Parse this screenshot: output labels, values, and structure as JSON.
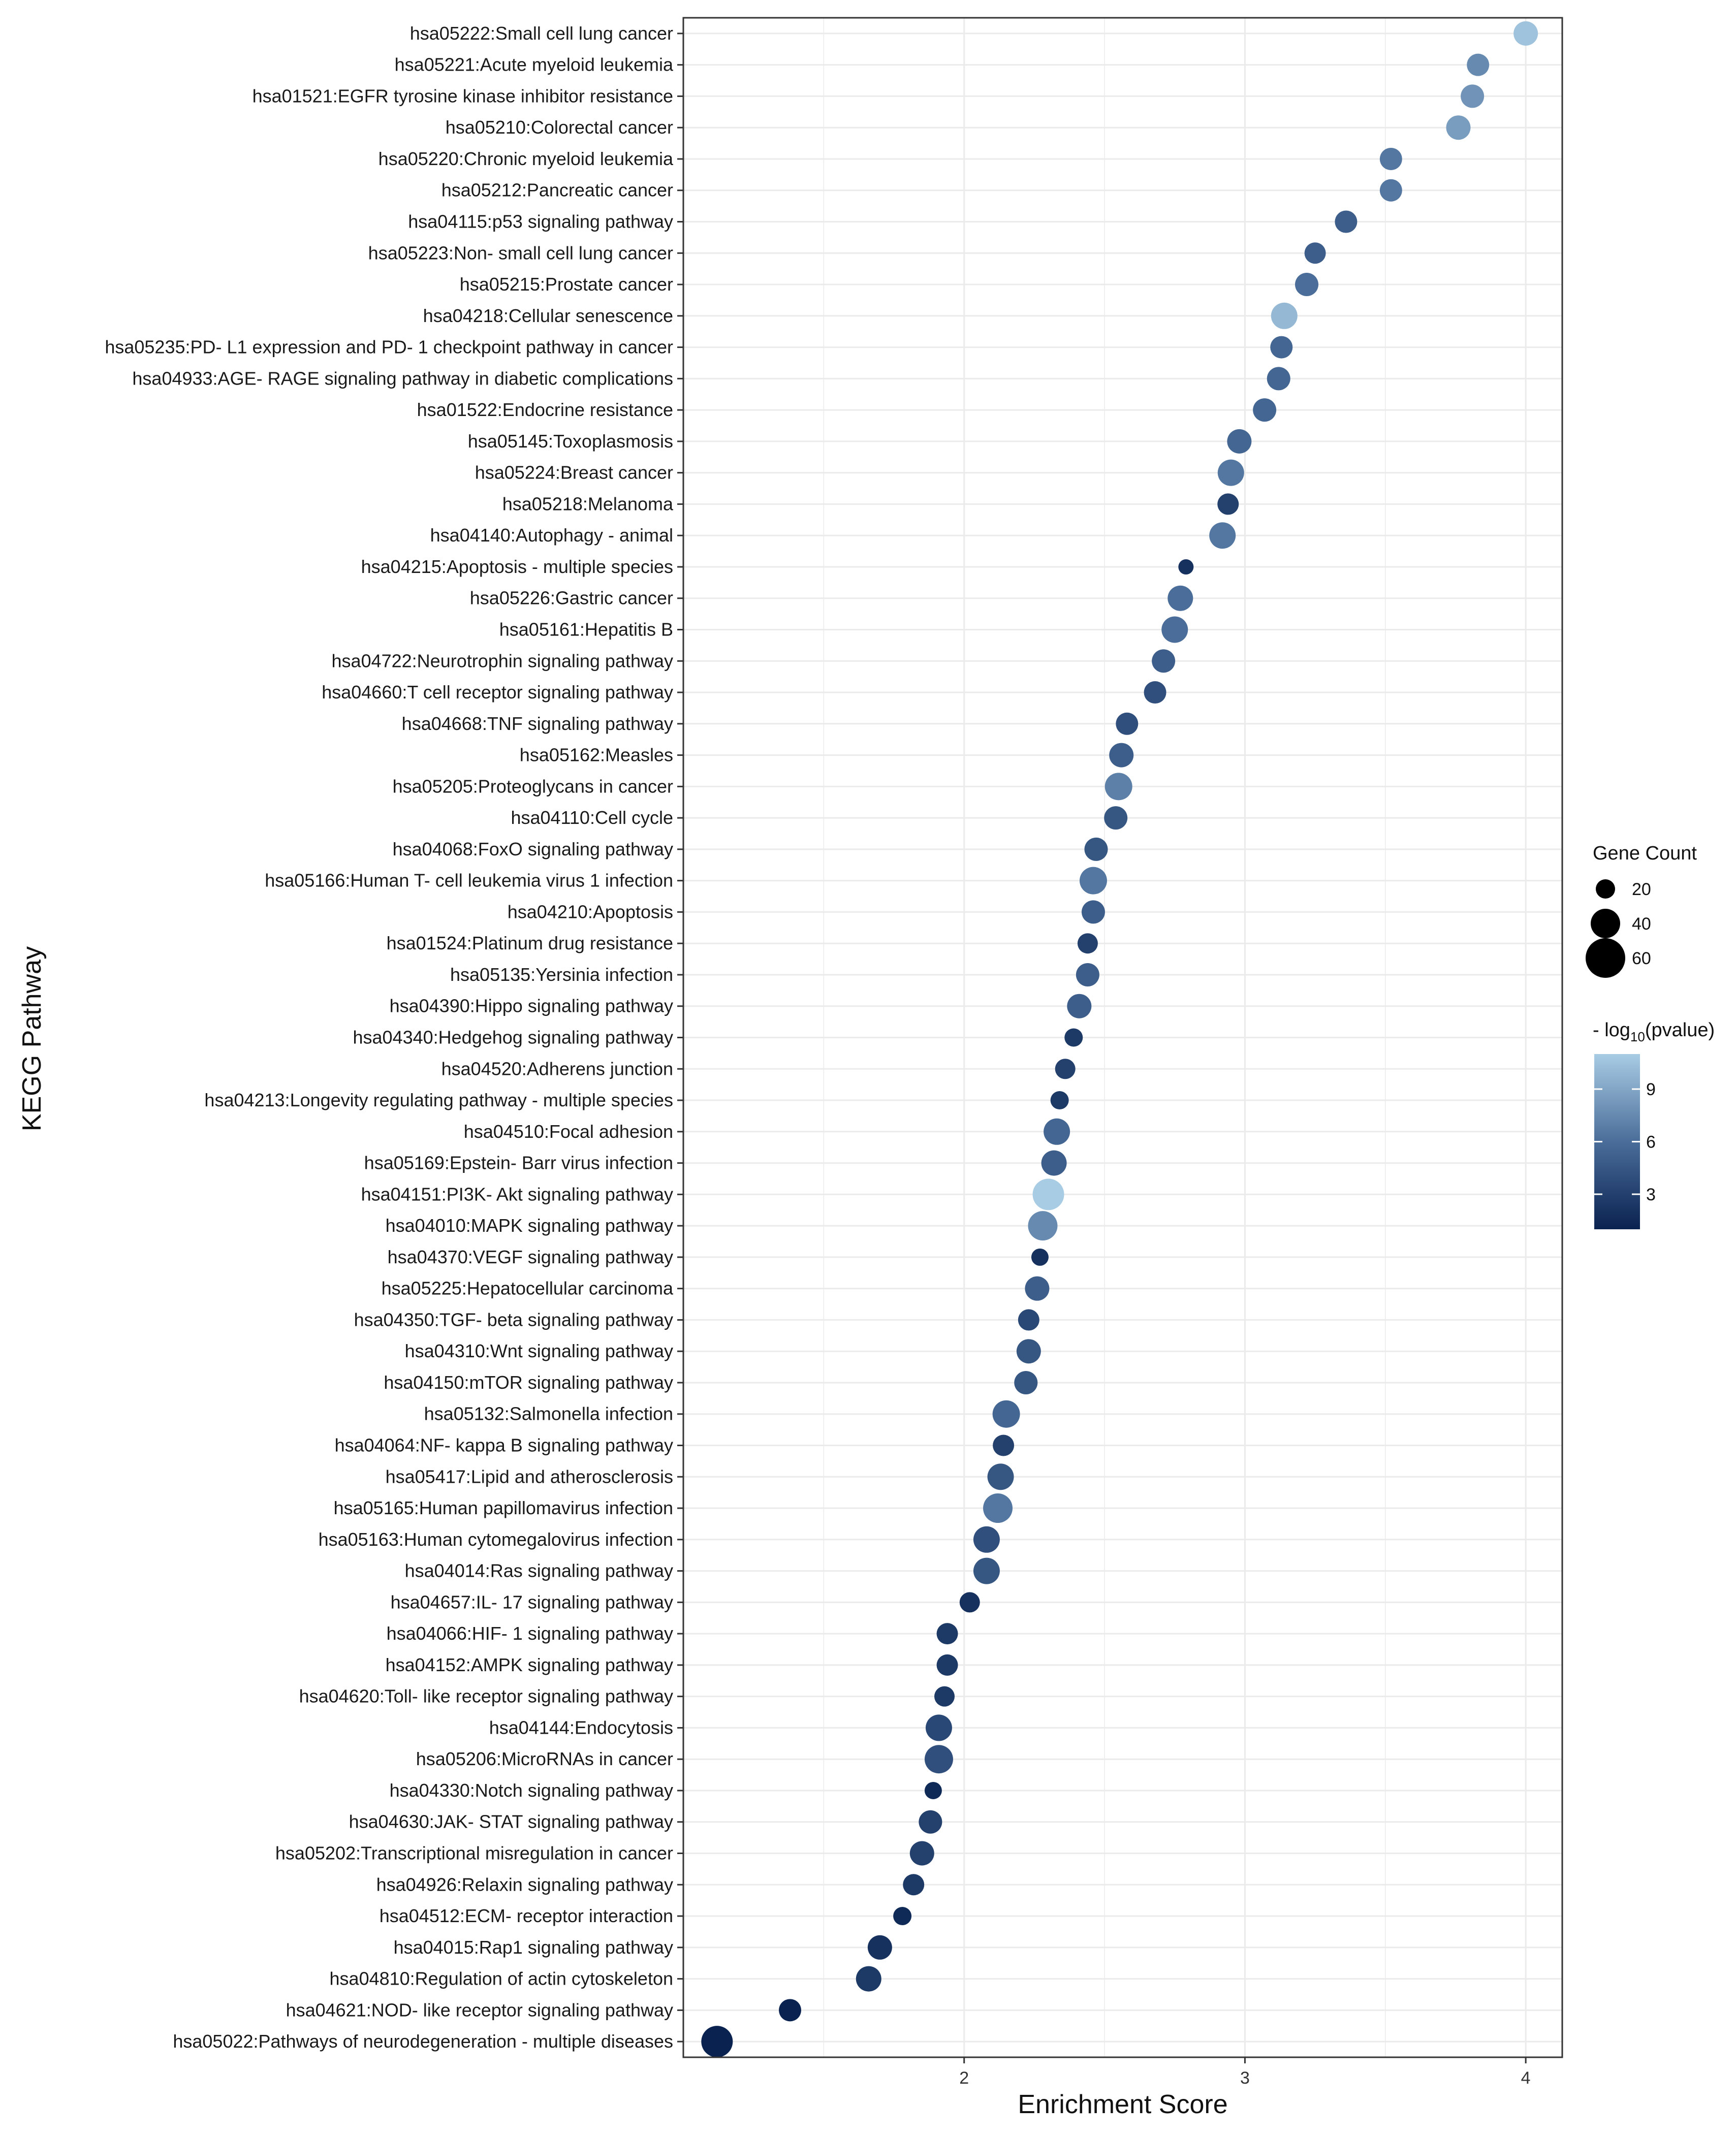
{
  "chart_data": {
    "type": "scatter",
    "xlabel": "Enrichment Score",
    "ylabel": "KEGG Pathway",
    "xlim": [
      1.0,
      4.13
    ],
    "x_ticks": [
      2,
      3,
      4
    ],
    "grid": true,
    "legend_placement": "right",
    "size_legend": {
      "title": "Gene Count",
      "entries": [
        20,
        40,
        60
      ]
    },
    "color_legend": {
      "title_prefix": "- log",
      "title_subscript": "10",
      "title_suffix": "(pvalue)",
      "ticks": [
        3,
        6,
        9
      ],
      "range": [
        1,
        11
      ],
      "low_color": "#0a2250",
      "high_color": "#a8cce4"
    },
    "points": [
      {
        "label": "hsa05222:Small cell lung cancer",
        "x": 4.0,
        "count": 30,
        "neglog10p": 10.5
      },
      {
        "label": "hsa05221:Acute myeloid leukemia",
        "x": 3.83,
        "count": 26,
        "neglog10p": 7.5
      },
      {
        "label": "hsa01521:EGFR tyrosine kinase inhibitor resistance",
        "x": 3.81,
        "count": 28,
        "neglog10p": 8.0
      },
      {
        "label": "hsa05210:Colorectal cancer",
        "x": 3.76,
        "count": 30,
        "neglog10p": 8.5
      },
      {
        "label": "hsa05220:Chronic myeloid leukemia",
        "x": 3.52,
        "count": 26,
        "neglog10p": 6.5
      },
      {
        "label": "hsa05212:Pancreatic cancer",
        "x": 3.52,
        "count": 26,
        "neglog10p": 6.5
      },
      {
        "label": "hsa04115:p53 signaling pathway",
        "x": 3.36,
        "count": 26,
        "neglog10p": 5.0
      },
      {
        "label": "hsa05223:Non- small cell lung cancer",
        "x": 3.25,
        "count": 24,
        "neglog10p": 5.0
      },
      {
        "label": "hsa05215:Prostate cancer",
        "x": 3.22,
        "count": 28,
        "neglog10p": 6.0
      },
      {
        "label": "hsa04218:Cellular senescence",
        "x": 3.14,
        "count": 34,
        "neglog10p": 10.0
      },
      {
        "label": "hsa05235:PD- L1 expression and PD- 1 checkpoint pathway in cancer",
        "x": 3.13,
        "count": 26,
        "neglog10p": 5.5
      },
      {
        "label": "hsa04933:AGE- RAGE signaling pathway in diabetic complications",
        "x": 3.12,
        "count": 28,
        "neglog10p": 5.5
      },
      {
        "label": "hsa01522:Endocrine resistance",
        "x": 3.07,
        "count": 28,
        "neglog10p": 5.5
      },
      {
        "label": "hsa05145:Toxoplasmosis",
        "x": 2.98,
        "count": 30,
        "neglog10p": 5.5
      },
      {
        "label": "hsa05224:Breast cancer",
        "x": 2.95,
        "count": 34,
        "neglog10p": 6.5
      },
      {
        "label": "hsa05218:Melanoma",
        "x": 2.94,
        "count": 24,
        "neglog10p": 3.0
      },
      {
        "label": "hsa04140:Autophagy -  animal",
        "x": 2.92,
        "count": 34,
        "neglog10p": 6.5
      },
      {
        "label": "hsa04215:Apoptosis -  multiple species",
        "x": 2.79,
        "count": 12,
        "neglog10p": 2.0
      },
      {
        "label": "hsa05226:Gastric cancer",
        "x": 2.77,
        "count": 32,
        "neglog10p": 6.0
      },
      {
        "label": "hsa05161:Hepatitis B",
        "x": 2.75,
        "count": 34,
        "neglog10p": 6.0
      },
      {
        "label": "hsa04722:Neurotrophin signaling pathway",
        "x": 2.71,
        "count": 28,
        "neglog10p": 5.0
      },
      {
        "label": "hsa04660:T cell receptor signaling pathway",
        "x": 2.68,
        "count": 26,
        "neglog10p": 4.0
      },
      {
        "label": "hsa04668:TNF signaling pathway",
        "x": 2.58,
        "count": 26,
        "neglog10p": 4.0
      },
      {
        "label": "hsa05162:Measles",
        "x": 2.56,
        "count": 30,
        "neglog10p": 5.0
      },
      {
        "label": "hsa05205:Proteoglycans in cancer",
        "x": 2.55,
        "count": 36,
        "neglog10p": 7.0
      },
      {
        "label": "hsa04110:Cell cycle",
        "x": 2.54,
        "count": 28,
        "neglog10p": 4.5
      },
      {
        "label": "hsa04068:FoxO signaling pathway",
        "x": 2.47,
        "count": 28,
        "neglog10p": 4.5
      },
      {
        "label": "hsa05166:Human T- cell leukemia virus 1 infection",
        "x": 2.46,
        "count": 36,
        "neglog10p": 6.5
      },
      {
        "label": "hsa04210:Apoptosis",
        "x": 2.46,
        "count": 28,
        "neglog10p": 5.0
      },
      {
        "label": "hsa01524:Platinum drug resistance",
        "x": 2.44,
        "count": 22,
        "neglog10p": 3.0
      },
      {
        "label": "hsa05135:Yersinia infection",
        "x": 2.44,
        "count": 28,
        "neglog10p": 5.0
      },
      {
        "label": "hsa04390:Hippo signaling pathway",
        "x": 2.41,
        "count": 30,
        "neglog10p": 5.0
      },
      {
        "label": "hsa04340:Hedgehog signaling pathway",
        "x": 2.39,
        "count": 18,
        "neglog10p": 2.5
      },
      {
        "label": "hsa04520:Adherens junction",
        "x": 2.36,
        "count": 22,
        "neglog10p": 3.0
      },
      {
        "label": "hsa04213:Longevity regulating pathway -  multiple species",
        "x": 2.34,
        "count": 18,
        "neglog10p": 2.5
      },
      {
        "label": "hsa04510:Focal adhesion",
        "x": 2.33,
        "count": 34,
        "neglog10p": 5.5
      },
      {
        "label": "hsa05169:Epstein- Barr virus infection",
        "x": 2.32,
        "count": 32,
        "neglog10p": 5.0
      },
      {
        "label": "hsa04151:PI3K- Akt signaling pathway",
        "x": 2.3,
        "count": 44,
        "neglog10p": 11.0
      },
      {
        "label": "hsa04010:MAPK signaling pathway",
        "x": 2.28,
        "count": 40,
        "neglog10p": 7.5
      },
      {
        "label": "hsa04370:VEGF signaling pathway",
        "x": 2.27,
        "count": 16,
        "neglog10p": 2.0
      },
      {
        "label": "hsa05225:Hepatocellular carcinoma",
        "x": 2.26,
        "count": 30,
        "neglog10p": 5.0
      },
      {
        "label": "hsa04350:TGF- beta signaling pathway",
        "x": 2.23,
        "count": 24,
        "neglog10p": 3.5
      },
      {
        "label": "hsa04310:Wnt signaling pathway",
        "x": 2.23,
        "count": 30,
        "neglog10p": 4.5
      },
      {
        "label": "hsa04150:mTOR signaling pathway",
        "x": 2.22,
        "count": 28,
        "neglog10p": 4.5
      },
      {
        "label": "hsa05132:Salmonella infection",
        "x": 2.15,
        "count": 36,
        "neglog10p": 5.5
      },
      {
        "label": "hsa04064:NF- kappa B signaling pathway",
        "x": 2.14,
        "count": 24,
        "neglog10p": 3.0
      },
      {
        "label": "hsa05417:Lipid and atherosclerosis",
        "x": 2.13,
        "count": 34,
        "neglog10p": 4.5
      },
      {
        "label": "hsa05165:Human papillomavirus infection",
        "x": 2.12,
        "count": 40,
        "neglog10p": 6.5
      },
      {
        "label": "hsa05163:Human cytomegalovirus infection",
        "x": 2.08,
        "count": 34,
        "neglog10p": 4.0
      },
      {
        "label": "hsa04014:Ras signaling pathway",
        "x": 2.08,
        "count": 34,
        "neglog10p": 4.5
      },
      {
        "label": "hsa04657:IL- 17 signaling pathway",
        "x": 2.02,
        "count": 22,
        "neglog10p": 2.0
      },
      {
        "label": "hsa04066:HIF- 1 signaling pathway",
        "x": 1.94,
        "count": 24,
        "neglog10p": 2.5
      },
      {
        "label": "hsa04152:AMPK signaling pathway",
        "x": 1.94,
        "count": 24,
        "neglog10p": 2.5
      },
      {
        "label": "hsa04620:Toll- like receptor signaling pathway",
        "x": 1.93,
        "count": 22,
        "neglog10p": 2.5
      },
      {
        "label": "hsa04144:Endocytosis",
        "x": 1.91,
        "count": 34,
        "neglog10p": 3.5
      },
      {
        "label": "hsa05206:MicroRNAs in cancer",
        "x": 1.91,
        "count": 38,
        "neglog10p": 4.0
      },
      {
        "label": "hsa04330:Notch signaling pathway",
        "x": 1.89,
        "count": 16,
        "neglog10p": 1.5
      },
      {
        "label": "hsa04630:JAK- STAT signaling pathway",
        "x": 1.88,
        "count": 28,
        "neglog10p": 3.0
      },
      {
        "label": "hsa05202:Transcriptional misregulation in cancer",
        "x": 1.85,
        "count": 30,
        "neglog10p": 3.0
      },
      {
        "label": "hsa04926:Relaxin signaling pathway",
        "x": 1.82,
        "count": 24,
        "neglog10p": 2.5
      },
      {
        "label": "hsa04512:ECM- receptor interaction",
        "x": 1.78,
        "count": 18,
        "neglog10p": 1.5
      },
      {
        "label": "hsa04015:Rap1 signaling pathway",
        "x": 1.7,
        "count": 30,
        "neglog10p": 2.0
      },
      {
        "label": "hsa04810:Regulation of actin cytoskeleton",
        "x": 1.66,
        "count": 32,
        "neglog10p": 2.5
      },
      {
        "label": "hsa04621:NOD- like receptor signaling pathway",
        "x": 1.38,
        "count": 26,
        "neglog10p": 1.0
      },
      {
        "label": "hsa05022:Pathways of neurodegeneration -  multiple diseases",
        "x": 1.12,
        "count": 44,
        "neglog10p": 1.0
      }
    ]
  }
}
